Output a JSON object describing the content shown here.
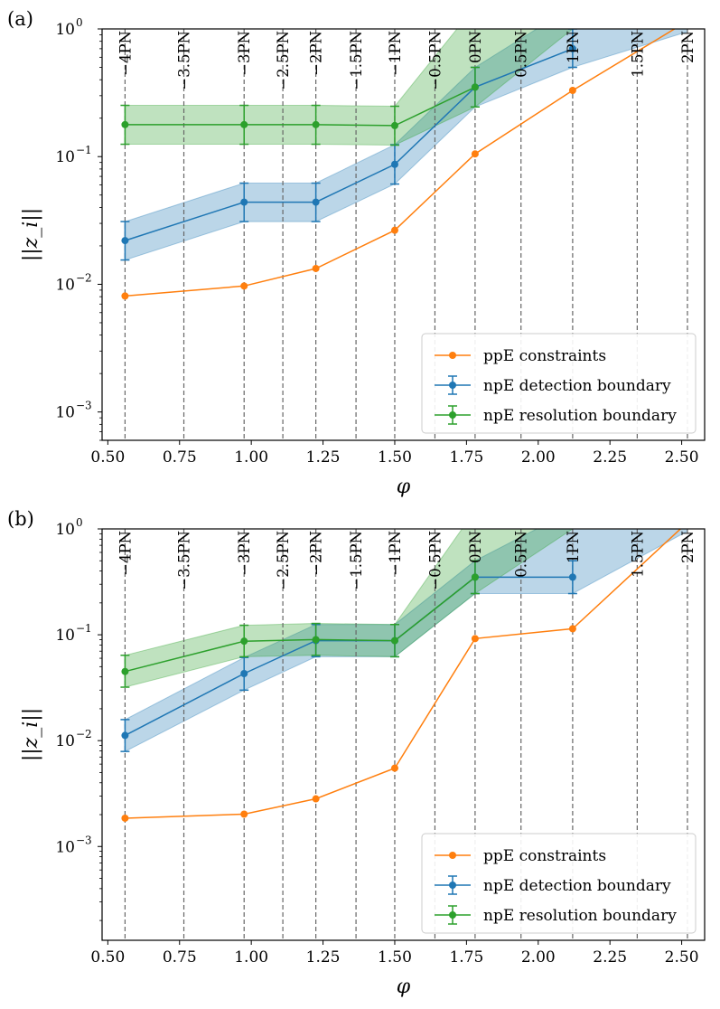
{
  "chart_data": [
    {
      "type": "line",
      "panel_label": "(a)",
      "xlabel": "φ",
      "ylabel": "||z_i||",
      "yscale": "log",
      "xlim": [
        0.48,
        2.58
      ],
      "ylim": [
        0.0006,
        1
      ],
      "x_ticks": [
        "0.50",
        "0.75",
        "1.00",
        "1.25",
        "1.50",
        "1.75",
        "2.00",
        "2.25",
        "2.50"
      ],
      "x_tick_values": [
        0.5,
        0.75,
        1.0,
        1.25,
        1.5,
        1.75,
        2.0,
        2.25,
        2.5
      ],
      "y_ticks": [
        {
          "base": "10",
          "exp": "−3",
          "value": 0.001
        },
        {
          "base": "10",
          "exp": "−2",
          "value": 0.01
        },
        {
          "base": "10",
          "exp": "−1",
          "value": 0.1
        },
        {
          "base": "10",
          "exp": "0",
          "value": 1
        }
      ],
      "pn_lines": [
        {
          "label": "−4PN",
          "x": 0.56
        },
        {
          "label": "−3.5PN",
          "x": 0.765
        },
        {
          "label": "−3PN",
          "x": 0.975
        },
        {
          "label": "−2.5PN",
          "x": 1.11
        },
        {
          "label": "−2PN",
          "x": 1.225
        },
        {
          "label": "−1.5PN",
          "x": 1.365
        },
        {
          "label": "−1PN",
          "x": 1.5
        },
        {
          "label": "−0.5PN",
          "x": 1.64
        },
        {
          "label": "0PN",
          "x": 1.78
        },
        {
          "label": "0.5PN",
          "x": 1.94
        },
        {
          "label": "1PN",
          "x": 2.12
        },
        {
          "label": "1.5PN",
          "x": 2.345
        },
        {
          "label": "2PN",
          "x": 2.52
        }
      ],
      "series": [
        {
          "name": "ppE constraints",
          "color": "#ff7f0e",
          "x": [
            0.56,
            0.975,
            1.225,
            1.5,
            1.78,
            2.12,
            2.52
          ],
          "values": [
            0.0081,
            0.0097,
            0.0133,
            0.0265,
            0.105,
            0.33,
            1.15
          ]
        },
        {
          "name": "npE detection boundary",
          "color": "#1f77b4",
          "x": [
            0.56,
            0.975,
            1.225,
            1.5,
            1.78,
            2.12
          ],
          "values": [
            0.022,
            0.044,
            0.044,
            0.087,
            0.35,
            0.7
          ],
          "lower": [
            0.0155,
            0.031,
            0.031,
            0.061,
            0.245,
            0.5
          ],
          "upper": [
            0.031,
            0.062,
            0.062,
            0.124,
            0.5,
            1.0
          ],
          "band_upper": [
            0.031,
            0.062,
            0.062,
            0.124,
            0.5,
            1.5
          ],
          "band_x_end": 2.52,
          "band_end_upper": 1.5,
          "band_end_lower": 0.95
        },
        {
          "name": "npE resolution boundary",
          "color": "#2ca02c",
          "x": [
            0.56,
            0.975,
            1.225,
            1.5,
            1.78
          ],
          "values": [
            0.178,
            0.178,
            0.178,
            0.175,
            0.35
          ],
          "lower": [
            0.125,
            0.125,
            0.125,
            0.123,
            0.245
          ],
          "upper": [
            0.252,
            0.252,
            0.252,
            0.248,
            0.5
          ],
          "band_upper": [
            0.252,
            0.252,
            0.252,
            0.248,
            1.5
          ],
          "band_x_end": 2.12,
          "band_end_upper": 1.5,
          "band_end_lower": 1.0
        }
      ],
      "legend": {
        "loc": "lower right",
        "entries": [
          "ppE constraints",
          "npE detection boundary",
          "npE resolution boundary"
        ]
      }
    },
    {
      "type": "line",
      "panel_label": "(b)",
      "xlabel": "φ",
      "ylabel": "||z_i||",
      "yscale": "log",
      "xlim": [
        0.48,
        2.58
      ],
      "ylim": [
        0.00013,
        1
      ],
      "x_ticks": [
        "0.50",
        "0.75",
        "1.00",
        "1.25",
        "1.50",
        "1.75",
        "2.00",
        "2.25",
        "2.50"
      ],
      "x_tick_values": [
        0.5,
        0.75,
        1.0,
        1.25,
        1.5,
        1.75,
        2.0,
        2.25,
        2.5
      ],
      "y_ticks": [
        {
          "base": "10",
          "exp": "−3",
          "value": 0.001
        },
        {
          "base": "10",
          "exp": "−2",
          "value": 0.01
        },
        {
          "base": "10",
          "exp": "−1",
          "value": 0.1
        },
        {
          "base": "10",
          "exp": "0",
          "value": 1
        }
      ],
      "pn_lines": [
        {
          "label": "−4PN",
          "x": 0.56
        },
        {
          "label": "−3.5PN",
          "x": 0.765
        },
        {
          "label": "−3PN",
          "x": 0.975
        },
        {
          "label": "−2.5PN",
          "x": 1.11
        },
        {
          "label": "−2PN",
          "x": 1.225
        },
        {
          "label": "−1.5PN",
          "x": 1.365
        },
        {
          "label": "−1PN",
          "x": 1.5
        },
        {
          "label": "−0.5PN",
          "x": 1.64
        },
        {
          "label": "0PN",
          "x": 1.78
        },
        {
          "label": "0.5PN",
          "x": 1.94
        },
        {
          "label": "1PN",
          "x": 2.12
        },
        {
          "label": "1.5PN",
          "x": 2.345
        },
        {
          "label": "2PN",
          "x": 2.52
        }
      ],
      "series": [
        {
          "name": "ppE constraints",
          "color": "#ff7f0e",
          "x": [
            0.56,
            0.975,
            1.225,
            1.5,
            1.78,
            2.12,
            2.52
          ],
          "values": [
            0.00185,
            0.00202,
            0.00282,
            0.0055,
            0.092,
            0.114,
            1.15
          ]
        },
        {
          "name": "npE detection boundary",
          "color": "#1f77b4",
          "x": [
            0.56,
            0.975,
            1.225,
            1.5,
            1.78,
            2.12
          ],
          "values": [
            0.0112,
            0.043,
            0.088,
            0.088,
            0.35,
            0.35
          ],
          "lower": [
            0.0079,
            0.03,
            0.062,
            0.062,
            0.245,
            0.245
          ],
          "upper": [
            0.0158,
            0.061,
            0.125,
            0.125,
            0.5,
            0.5
          ],
          "band_upper": [
            0.0158,
            0.061,
            0.125,
            0.125,
            0.5,
            1.5
          ],
          "band_x_end": 2.52,
          "band_end_upper": 1.5,
          "band_end_lower": 0.95
        },
        {
          "name": "npE resolution boundary",
          "color": "#2ca02c",
          "x": [
            0.56,
            0.975,
            1.225,
            1.5,
            1.78
          ],
          "values": [
            0.045,
            0.087,
            0.09,
            0.088,
            0.35
          ],
          "lower": [
            0.032,
            0.062,
            0.064,
            0.062,
            0.245
          ],
          "upper": [
            0.064,
            0.123,
            0.128,
            0.125,
            0.5
          ],
          "band_upper": [
            0.064,
            0.123,
            0.128,
            0.125,
            1.5
          ],
          "band_x_end": 2.12,
          "band_end_upper": 1.5,
          "band_end_lower": 1.0
        }
      ],
      "legend": {
        "loc": "lower right",
        "entries": [
          "ppE constraints",
          "npE detection boundary",
          "npE resolution boundary"
        ]
      }
    }
  ]
}
